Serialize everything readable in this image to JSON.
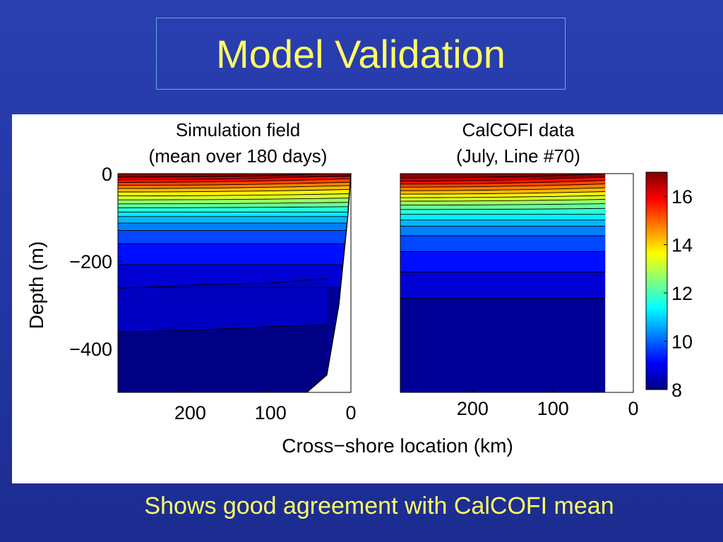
{
  "slide": {
    "title": "Model Validation",
    "caption": "Shows good agreement with CalCOFI mean"
  },
  "chart_data": [
    {
      "type": "heatmap",
      "title": "Simulation field",
      "subtitle": "(mean over 180 days)",
      "xlabel": "Cross−shore location (km)",
      "ylabel": "Depth (m)",
      "x_direction": "reversed",
      "xlim": [
        290,
        0
      ],
      "ylim": [
        -500,
        0
      ],
      "xticks": [
        200,
        100,
        0
      ],
      "xtick_labels": [
        "200",
        "100",
        "0"
      ],
      "yticks": [
        0,
        -200,
        -400
      ],
      "ytick_labels": [
        "0",
        "−200",
        "−400"
      ],
      "contour_temperatures": [
        16.5,
        16,
        15.5,
        15,
        14.5,
        14,
        13.5,
        13,
        12.5,
        12,
        11.5,
        11,
        10.5,
        10,
        9.5,
        9,
        8.5
      ],
      "contour_depths": [
        -8,
        -14,
        -20,
        -27,
        -34,
        -42,
        -51,
        -60,
        -69,
        -78,
        -88,
        -98,
        -113,
        -130,
        -160,
        -208,
        -260
      ],
      "deep_contour_depths_at_x": {
        "x": [
          290,
          200,
          100,
          30
        ],
        "isotherm_8_5": [
          -262,
          -255,
          -250,
          -240
        ],
        "isotherm_8_2": [
          -362,
          -358,
          -350,
          -345
        ]
      },
      "coastline_x_at_depth": {
        "depth": [
          0,
          -100,
          -300,
          -460,
          -500
        ],
        "x": [
          0,
          4,
          15,
          30,
          55
        ]
      },
      "grid": false
    },
    {
      "type": "heatmap",
      "title": "CalCOFI data",
      "subtitle": "(July, Line #70)",
      "x_direction": "reversed",
      "xlim": [
        290,
        0
      ],
      "ylim": [
        -500,
        0
      ],
      "xticks": [
        200,
        100,
        0
      ],
      "xtick_labels": [
        "200",
        "100",
        "0"
      ],
      "data_xrange": [
        290,
        35
      ],
      "contour_temperatures": [
        16.5,
        16,
        15.5,
        15,
        14.5,
        14,
        13.5,
        13,
        12.5,
        12,
        11.5,
        11,
        10.5,
        10,
        9.5,
        9,
        8.5
      ],
      "contour_depths": [
        -10,
        -17,
        -24,
        -31,
        -39,
        -47,
        -55,
        -63,
        -72,
        -82,
        -93,
        -106,
        -120,
        -142,
        -178,
        -225,
        -285
      ],
      "grid": false
    }
  ],
  "colorbar": {
    "colormap": "jet",
    "range": [
      8,
      17
    ],
    "ticks": [
      8,
      10,
      12,
      14,
      16
    ],
    "tick_labels": [
      "8",
      "10",
      "12",
      "14",
      "16"
    ]
  }
}
